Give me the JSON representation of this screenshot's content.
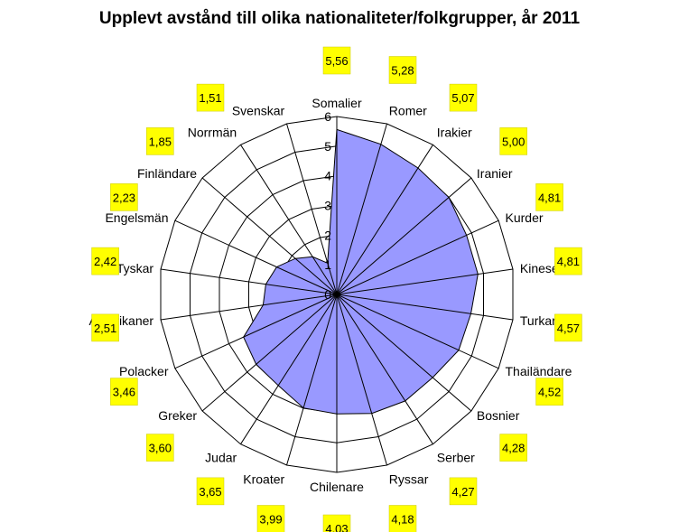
{
  "chart_data": {
    "type": "radar",
    "title": "Upplevt avstånd till olika nationaliteter/folkgrupper, år 2011",
    "rlim": [
      0,
      6
    ],
    "ticks": [
      "0",
      "1",
      "2",
      "3",
      "4",
      "5",
      "6"
    ],
    "grid": true,
    "colors": {
      "fill": "#9999ff",
      "line": "#000000",
      "label_bg": "#ffff00"
    },
    "categories": [
      "Somalier",
      "Romer",
      "Irakier",
      "Iranier",
      "Kurder",
      "Kineser",
      "Turkar",
      "Thailändare",
      "Bosnier",
      "Serber",
      "Ryssar",
      "Chilenare",
      "Kroater",
      "Judar",
      "Greker",
      "Polacker",
      "Amerikaner",
      "Tyskar",
      "Engelsmän",
      "Finländare",
      "Norrmän",
      "Svenskar"
    ],
    "values": [
      5.56,
      5.28,
      5.07,
      5.0,
      4.81,
      4.81,
      4.57,
      4.52,
      4.28,
      4.27,
      4.18,
      4.03,
      3.99,
      3.65,
      3.6,
      3.46,
      2.51,
      2.42,
      2.23,
      1.85,
      1.51,
      1.1
    ],
    "value_labels": [
      "5,56",
      "5,28",
      "5,07",
      "5,00",
      "4,81",
      "4,81",
      "4,57",
      "4,52",
      "4,28",
      "4,27",
      "4,18",
      "4,03",
      "3,99",
      "3,65",
      "3,60",
      "3,46",
      "2,51",
      "2,42",
      "2,23",
      "1,85",
      "1,51",
      ""
    ]
  }
}
